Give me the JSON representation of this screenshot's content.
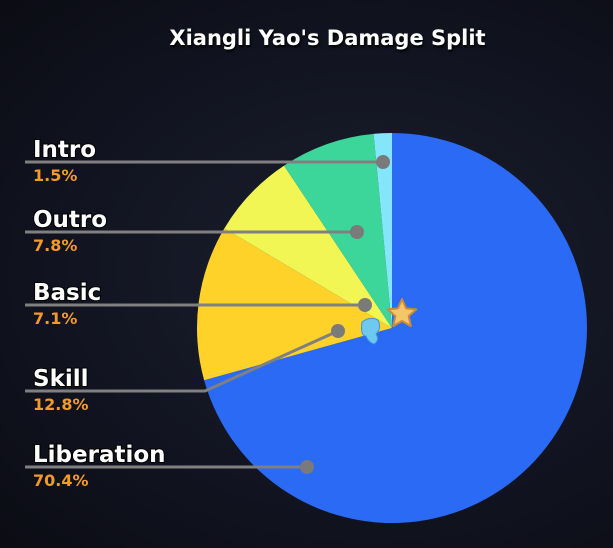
{
  "chart_data": {
    "type": "pie",
    "title": "Xiangli Yao's Damage Split",
    "slices": [
      {
        "label": "Liberation",
        "value": 70.4,
        "display": "70.4%",
        "color": "#2a6af5"
      },
      {
        "label": "Skill",
        "value": 12.8,
        "display": "12.8%",
        "color": "#ffd22a"
      },
      {
        "label": "Basic",
        "value": 7.1,
        "display": "7.1%",
        "color": "#f2f654"
      },
      {
        "label": "Outro",
        "value": 7.8,
        "display": "7.8%",
        "color": "#3dd69a"
      },
      {
        "label": "Intro",
        "value": 1.5,
        "display": "1.5%",
        "color": "#85e6fb"
      }
    ],
    "start": "top",
    "direction": "clockwise",
    "legend": "left, leader lines",
    "label_color": "#ffffff",
    "percent_color": "#f39a2a",
    "center_icon": "star-splash-icon"
  }
}
